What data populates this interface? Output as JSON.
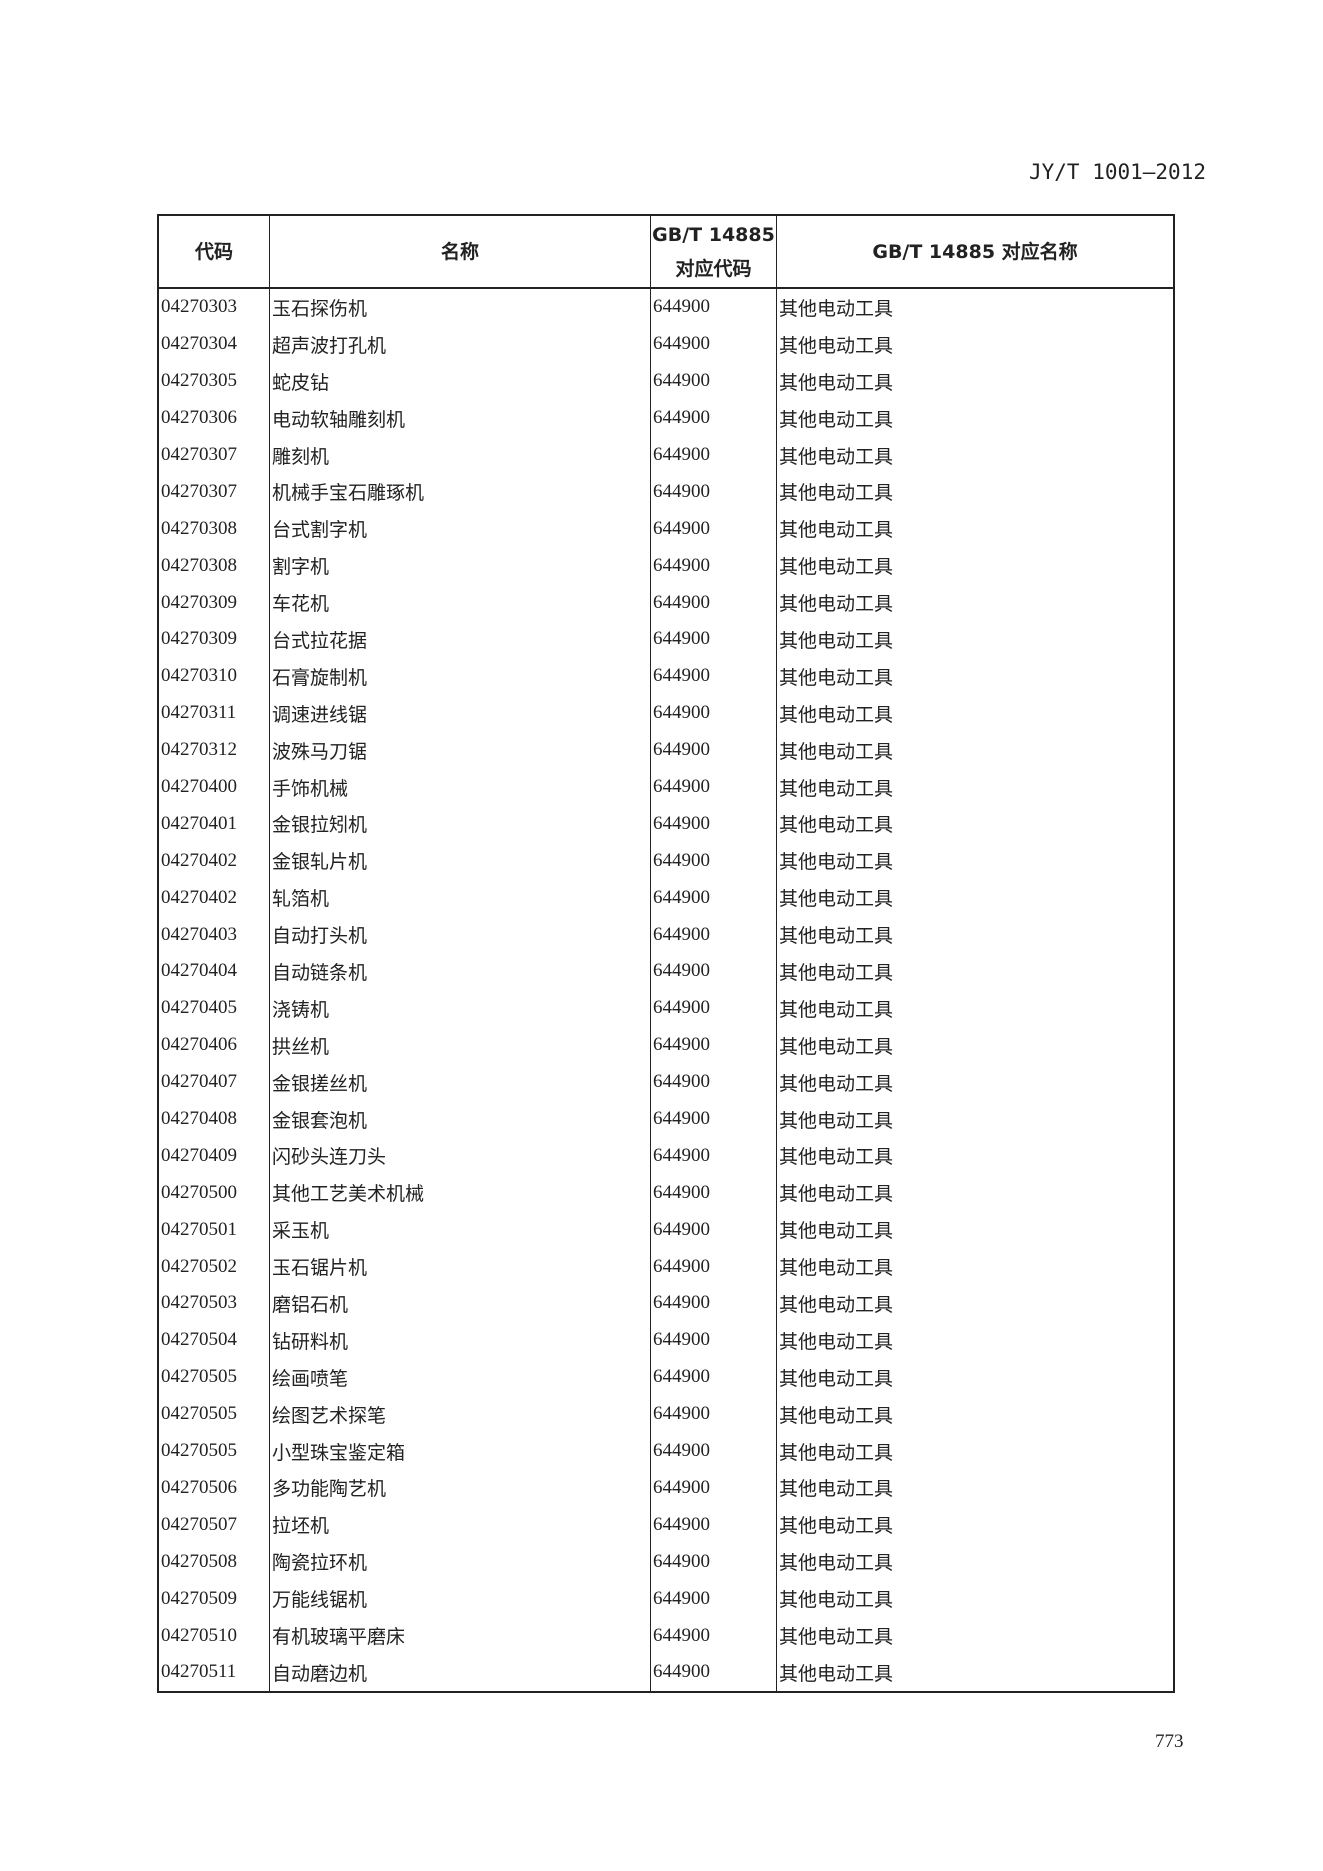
{
  "header": {
    "standard_code": "JY/T 1001—2012"
  },
  "table": {
    "columns": [
      "代码",
      "名称",
      "GB/T 14885\n对应代码",
      "GB/T 14885 对应名称"
    ],
    "columns_line1": [
      "代码",
      "名称",
      "GB/T 14885",
      "GB/T 14885 对应名称"
    ],
    "col3_line2": "对应代码",
    "rows": [
      [
        "04270303",
        "玉石探伤机",
        "644900",
        "其他电动工具"
      ],
      [
        "04270304",
        "超声波打孔机",
        "644900",
        "其他电动工具"
      ],
      [
        "04270305",
        "蛇皮钻",
        "644900",
        "其他电动工具"
      ],
      [
        "04270306",
        "电动软轴雕刻机",
        "644900",
        "其他电动工具"
      ],
      [
        "04270307",
        "雕刻机",
        "644900",
        "其他电动工具"
      ],
      [
        "04270307",
        "机械手宝石雕琢机",
        "644900",
        "其他电动工具"
      ],
      [
        "04270308",
        "台式割字机",
        "644900",
        "其他电动工具"
      ],
      [
        "04270308",
        "割字机",
        "644900",
        "其他电动工具"
      ],
      [
        "04270309",
        "车花机",
        "644900",
        "其他电动工具"
      ],
      [
        "04270309",
        "台式拉花据",
        "644900",
        "其他电动工具"
      ],
      [
        "04270310",
        "石膏旋制机",
        "644900",
        "其他电动工具"
      ],
      [
        "04270311",
        "调速进线锯",
        "644900",
        "其他电动工具"
      ],
      [
        "04270312",
        "波殊马刀锯",
        "644900",
        "其他电动工具"
      ],
      [
        "04270400",
        "手饰机械",
        "644900",
        "其他电动工具"
      ],
      [
        "04270401",
        "金银拉矧机",
        "644900",
        "其他电动工具"
      ],
      [
        "04270402",
        "金银轧片机",
        "644900",
        "其他电动工具"
      ],
      [
        "04270402",
        "轧箔机",
        "644900",
        "其他电动工具"
      ],
      [
        "04270403",
        "自动打头机",
        "644900",
        "其他电动工具"
      ],
      [
        "04270404",
        "自动链条机",
        "644900",
        "其他电动工具"
      ],
      [
        "04270405",
        "浇铸机",
        "644900",
        "其他电动工具"
      ],
      [
        "04270406",
        "拱丝机",
        "644900",
        "其他电动工具"
      ],
      [
        "04270407",
        "金银搓丝机",
        "644900",
        "其他电动工具"
      ],
      [
        "04270408",
        "金银套泡机",
        "644900",
        "其他电动工具"
      ],
      [
        "04270409",
        "闪砂头连刀头",
        "644900",
        "其他电动工具"
      ],
      [
        "04270500",
        "其他工艺美术机械",
        "644900",
        "其他电动工具"
      ],
      [
        "04270501",
        "采玉机",
        "644900",
        "其他电动工具"
      ],
      [
        "04270502",
        "玉石锯片机",
        "644900",
        "其他电动工具"
      ],
      [
        "04270503",
        "磨铝石机",
        "644900",
        "其他电动工具"
      ],
      [
        "04270504",
        "钻研料机",
        "644900",
        "其他电动工具"
      ],
      [
        "04270505",
        "绘画喷笔",
        "644900",
        "其他电动工具"
      ],
      [
        "04270505",
        "绘图艺术探笔",
        "644900",
        "其他电动工具"
      ],
      [
        "04270505",
        "小型珠宝鉴定箱",
        "644900",
        "其他电动工具"
      ],
      [
        "04270506",
        "多功能陶艺机",
        "644900",
        "其他电动工具"
      ],
      [
        "04270507",
        "拉坯机",
        "644900",
        "其他电动工具"
      ],
      [
        "04270508",
        "陶瓷拉环机",
        "644900",
        "其他电动工具"
      ],
      [
        "04270509",
        "万能线锯机",
        "644900",
        "其他电动工具"
      ],
      [
        "04270510",
        "有机玻璃平磨床",
        "644900",
        "其他电动工具"
      ],
      [
        "04270511",
        "自动磨边机",
        "644900",
        "其他电动工具"
      ]
    ]
  },
  "footer": {
    "page_number": "773"
  }
}
